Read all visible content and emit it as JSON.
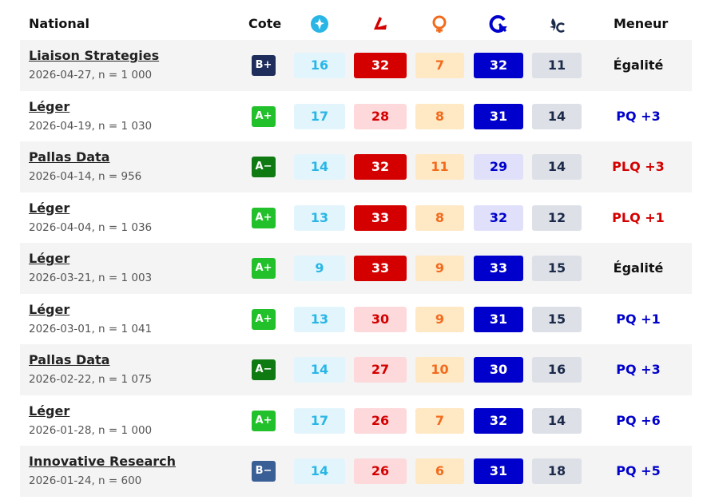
{
  "header": {
    "national": "National",
    "cote": "Cote",
    "meneur": "Meneur"
  },
  "rows": [
    {
      "pollster": "Liaison Strategies",
      "meta": "2026-04-27, n = 1 000",
      "grade": "B+",
      "grade_color": "#1f2d5c",
      "values": [
        16,
        32,
        7,
        32,
        11
      ],
      "fills": [
        "#e3f5fc",
        "#d40000",
        "#ffe8c4",
        "#0000cc",
        "#dde0e6"
      ],
      "leader": "Égalité",
      "leader_color": "#111111"
    },
    {
      "pollster": "Léger",
      "meta": "2026-04-19, n = 1 030",
      "grade": "A+",
      "grade_color": "#22c02a",
      "values": [
        17,
        28,
        8,
        31,
        14
      ],
      "fills": [
        "#e3f5fc",
        "#fdd9dc",
        "#ffe8c4",
        "#0000cc",
        "#dde0e6"
      ],
      "leader": "PQ +3",
      "leader_color": "#0000cc"
    },
    {
      "pollster": "Pallas Data",
      "meta": "2026-04-14, n = 956",
      "grade": "A−",
      "grade_color": "#0f7a12",
      "values": [
        14,
        32,
        11,
        29,
        14
      ],
      "fills": [
        "#e3f5fc",
        "#d40000",
        "#ffe8c4",
        "#e0e0fb",
        "#dde0e6"
      ],
      "leader": "PLQ +3",
      "leader_color": "#d40000"
    },
    {
      "pollster": "Léger",
      "meta": "2026-04-04, n = 1 036",
      "grade": "A+",
      "grade_color": "#22c02a",
      "values": [
        13,
        33,
        8,
        32,
        12
      ],
      "fills": [
        "#e3f5fc",
        "#d40000",
        "#ffe8c4",
        "#e0e0fb",
        "#dde0e6"
      ],
      "leader": "PLQ +1",
      "leader_color": "#d40000"
    },
    {
      "pollster": "Léger",
      "meta": "2026-03-21, n = 1 003",
      "grade": "A+",
      "grade_color": "#22c02a",
      "values": [
        9,
        33,
        9,
        33,
        15
      ],
      "fills": [
        "#e3f5fc",
        "#d40000",
        "#ffe8c4",
        "#0000cc",
        "#dde0e6"
      ],
      "leader": "Égalité",
      "leader_color": "#111111"
    },
    {
      "pollster": "Léger",
      "meta": "2026-03-01, n = 1 041",
      "grade": "A+",
      "grade_color": "#22c02a",
      "values": [
        13,
        30,
        9,
        31,
        15
      ],
      "fills": [
        "#e3f5fc",
        "#fdd9dc",
        "#ffe8c4",
        "#0000cc",
        "#dde0e6"
      ],
      "leader": "PQ +1",
      "leader_color": "#0000cc"
    },
    {
      "pollster": "Pallas Data",
      "meta": "2026-02-22, n = 1 075",
      "grade": "A−",
      "grade_color": "#0f7a12",
      "values": [
        14,
        27,
        10,
        30,
        16
      ],
      "fills": [
        "#e3f5fc",
        "#fdd9dc",
        "#ffe8c4",
        "#0000cc",
        "#dde0e6"
      ],
      "leader": "PQ +3",
      "leader_color": "#0000cc"
    },
    {
      "pollster": "Léger",
      "meta": "2026-01-28, n = 1 000",
      "grade": "A+",
      "grade_color": "#22c02a",
      "values": [
        17,
        26,
        7,
        32,
        14
      ],
      "fills": [
        "#e3f5fc",
        "#fdd9dc",
        "#ffe8c4",
        "#0000cc",
        "#dde0e6"
      ],
      "leader": "PQ +6",
      "leader_color": "#0000cc"
    },
    {
      "pollster": "Innovative Research",
      "meta": "2026-01-24, n = 600",
      "grade": "B−",
      "grade_color": "#3a5f96",
      "values": [
        14,
        26,
        6,
        31,
        18
      ],
      "fills": [
        "#e3f5fc",
        "#fdd9dc",
        "#ffe8c4",
        "#0000cc",
        "#dde0e6"
      ],
      "leader": "PQ +5",
      "leader_color": "#0000cc"
    }
  ]
}
